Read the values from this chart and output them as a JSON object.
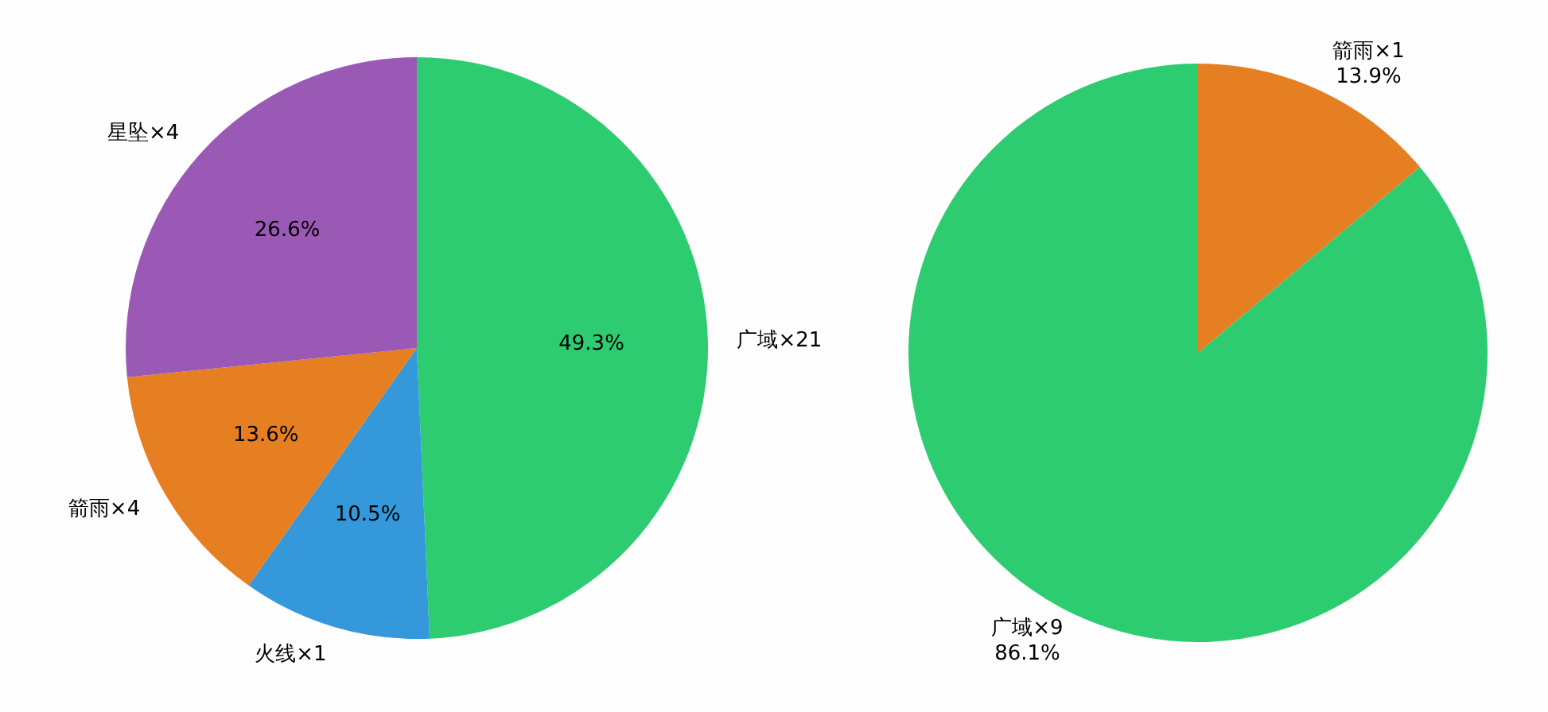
{
  "chart_data": [
    {
      "type": "pie",
      "categories": [
        "广域×21",
        "火线×1",
        "箭雨×4",
        "星坠×4"
      ],
      "values": [
        49.3,
        10.5,
        13.6,
        26.6
      ],
      "colors": [
        "#2ecc71",
        "#3498db",
        "#e67e22",
        "#9b59b6"
      ],
      "value_labels": [
        "49.3%",
        "10.5%",
        "13.6%",
        "26.6%"
      ],
      "legend": false
    },
    {
      "type": "pie",
      "categories": [
        "箭雨×1",
        "广域×9"
      ],
      "values": [
        13.9,
        86.1
      ],
      "colors": [
        "#e67e22",
        "#2ecc71"
      ],
      "value_labels": [
        "13.9%",
        "86.1%"
      ],
      "legend": false
    }
  ]
}
